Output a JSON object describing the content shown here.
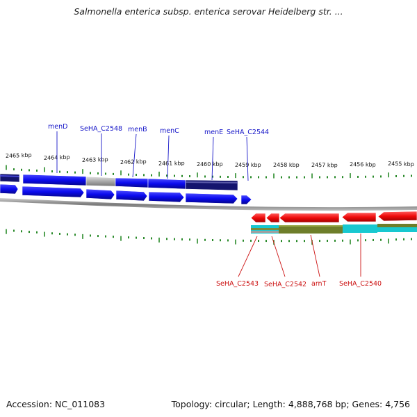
{
  "header": {
    "title": "Salmonella enterica subsp. enterica serovar Heidelberg str. ..."
  },
  "footer": {
    "accession": "Accession: NC_011083",
    "topology": "Topology: circular; Length: 4,888,768 bp; Genes: 4,756"
  },
  "scale": {
    "tick_labels": [
      "2465 kbp",
      "2464 kbp",
      "2463 kbp",
      "2462 kbp",
      "2461 kbp",
      "2460 kbp",
      "2459 kbp",
      "2458 kbp",
      "2457 kbp",
      "2456 kbp",
      "2455 kbp"
    ]
  },
  "genes_top": [
    {
      "name": "menD"
    },
    {
      "name": "SeHA_C2548"
    },
    {
      "name": "menB"
    },
    {
      "name": "menC"
    },
    {
      "name": "menE"
    },
    {
      "name": "SeHA_C2544"
    }
  ],
  "genes_bottom": [
    {
      "name": "SeHA_C2543"
    },
    {
      "name": "SeHA_C2542"
    },
    {
      "name": "arnT"
    },
    {
      "name": "SeHA_C2540"
    }
  ],
  "colors": {
    "forward": "#0a0aee",
    "reverse": "#ee0a0a",
    "forward_dark": "#14146e",
    "cds_gray": "#b8b8b8",
    "tick": "#2a8a2a",
    "olive": "#6e7e2a",
    "cyan": "#18c8d0",
    "backbone": "#888888"
  }
}
